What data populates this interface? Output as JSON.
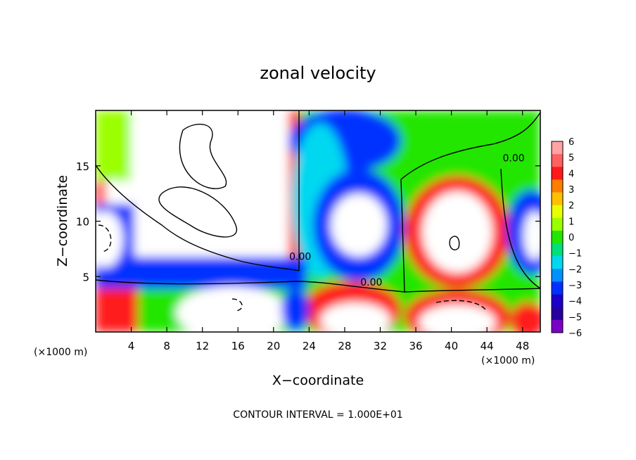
{
  "chart_data": {
    "type": "heatmap",
    "title": "zonal velocity",
    "xlabel": "X−coordinate",
    "ylabel": "Z−coordinate",
    "x_unit_left": "(×1000 m)",
    "x_unit_right": "(×1000 m)",
    "footer": "CONTOUR INTERVAL = 1.000E+01",
    "xlim": [
      0,
      50
    ],
    "ylim": [
      0,
      20
    ],
    "xticks": [
      4,
      8,
      12,
      16,
      20,
      24,
      28,
      32,
      36,
      40,
      44,
      48
    ],
    "yticks": [
      5,
      10,
      15
    ],
    "colorbar": {
      "labels": [
        "6",
        "5",
        "4",
        "3",
        "2",
        "1",
        "0",
        "−1",
        "−2",
        "−3",
        "−4",
        "−5",
        "−6"
      ],
      "colors": [
        "#ffa3a3",
        "#ff6060",
        "#ff1a1a",
        "#ff7e00",
        "#ffc000",
        "#e8ff00",
        "#9bff00",
        "#22e600",
        "#00e07a",
        "#00d8f0",
        "#0090ff",
        "#0030ff",
        "#1a00c8",
        "#2800a0",
        "#7a00c8"
      ]
    },
    "contour_labels": [
      {
        "x": 23,
        "y": 6.5,
        "text": "0.00"
      },
      {
        "x": 31,
        "y": 4.2,
        "text": "0.00"
      },
      {
        "x": 47,
        "y": 15.4,
        "text": "0.00"
      }
    ]
  }
}
